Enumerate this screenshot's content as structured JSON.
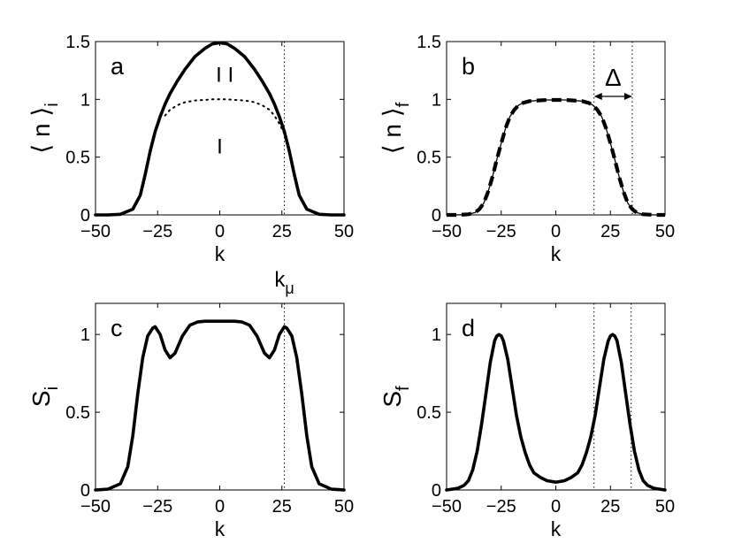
{
  "chart_data": [
    {
      "panel_label": "a",
      "type": "line",
      "xlabel": "k",
      "ylabel": {
        "main": "⟨ n ⟩",
        "sub": "i"
      },
      "xlim": [
        -50,
        50
      ],
      "ylim": [
        0,
        1.5
      ],
      "xticks": [
        -50,
        -25,
        0,
        25,
        50
      ],
      "yticks": [
        0,
        0.5,
        1,
        1.5
      ],
      "ytick_labels": [
        "0",
        "0.5",
        "1",
        "1.5"
      ],
      "grid": false,
      "vlines": [
        26
      ],
      "annotations": [
        {
          "text": "I I",
          "x": 2,
          "y": 1.15
        },
        {
          "text": "I",
          "x": 0,
          "y": 0.53
        },
        {
          "text": "k",
          "sub": "μ",
          "x": 26,
          "y": -0.62
        }
      ],
      "series": [
        {
          "style": "solid-thick",
          "x": [
            -50,
            -45,
            -40,
            -35,
            -32,
            -30,
            -28,
            -26,
            -24,
            -22,
            -20,
            -17,
            -14,
            -10,
            -6,
            -3,
            0,
            3,
            6,
            10,
            14,
            17,
            20,
            22,
            24,
            26,
            28,
            30,
            32,
            35,
            40,
            45,
            50
          ],
          "y": [
            0,
            0,
            0.005,
            0.05,
            0.17,
            0.35,
            0.55,
            0.72,
            0.85,
            0.96,
            1.05,
            1.16,
            1.26,
            1.37,
            1.44,
            1.48,
            1.49,
            1.48,
            1.44,
            1.37,
            1.26,
            1.16,
            1.05,
            0.96,
            0.85,
            0.72,
            0.55,
            0.35,
            0.17,
            0.05,
            0.005,
            0,
            0
          ]
        },
        {
          "style": "dotted",
          "x": [
            -22,
            -20,
            -17,
            -14,
            -10,
            -6,
            -3,
            0,
            3,
            6,
            10,
            14,
            17,
            20,
            22,
            24,
            26
          ],
          "y": [
            0.86,
            0.91,
            0.95,
            0.975,
            0.99,
            0.995,
            1.0,
            1.0,
            1.0,
            0.995,
            0.99,
            0.975,
            0.95,
            0.91,
            0.86,
            0.79,
            0.7
          ]
        }
      ]
    },
    {
      "panel_label": "b",
      "type": "line",
      "xlabel": "k",
      "ylabel": {
        "main": "⟨ n ⟩",
        "sub": "f"
      },
      "xlim": [
        -50,
        50
      ],
      "ylim": [
        0,
        1.5
      ],
      "xticks": [
        -50,
        -25,
        0,
        25,
        50
      ],
      "yticks": [
        0,
        0.5,
        1,
        1.5
      ],
      "ytick_labels": [
        "0",
        "0.5",
        "1",
        "1.5"
      ],
      "grid": false,
      "vlines": [
        17.5,
        35
      ],
      "annotations": [
        {
          "text": "Δ",
          "x": 26,
          "y": 1.23
        }
      ],
      "series": [
        {
          "style": "solid-thin",
          "x": [
            -50,
            -45,
            -40,
            -37,
            -35,
            -33,
            -31,
            -29,
            -27,
            -25,
            -23,
            -21,
            -19,
            -17,
            -15,
            -12,
            -8,
            -4,
            0,
            4,
            8,
            12,
            15,
            17,
            19,
            21,
            23,
            25,
            27,
            29,
            31,
            33,
            35,
            37,
            40,
            45,
            50
          ],
          "y": [
            0,
            0,
            0.005,
            0.02,
            0.05,
            0.1,
            0.2,
            0.33,
            0.48,
            0.62,
            0.75,
            0.85,
            0.91,
            0.95,
            0.97,
            0.985,
            0.99,
            0.995,
            0.995,
            0.995,
            0.99,
            0.985,
            0.97,
            0.95,
            0.91,
            0.85,
            0.75,
            0.62,
            0.48,
            0.33,
            0.2,
            0.1,
            0.05,
            0.02,
            0.005,
            0,
            0
          ]
        },
        {
          "style": "dashed-thick",
          "x": [
            -50,
            -45,
            -40,
            -37,
            -35,
            -33,
            -31,
            -29,
            -27,
            -25,
            -23,
            -21,
            -19,
            -17,
            -15,
            -12,
            -8,
            -4,
            0,
            4,
            8,
            12,
            15,
            17,
            19,
            21,
            23,
            25,
            27,
            29,
            31,
            33,
            35,
            37,
            40,
            45,
            50
          ],
          "y": [
            0,
            0,
            0.005,
            0.02,
            0.05,
            0.1,
            0.2,
            0.33,
            0.48,
            0.62,
            0.75,
            0.85,
            0.91,
            0.95,
            0.97,
            0.985,
            0.99,
            0.995,
            0.995,
            0.995,
            0.99,
            0.985,
            0.97,
            0.95,
            0.91,
            0.85,
            0.75,
            0.62,
            0.48,
            0.33,
            0.2,
            0.1,
            0.05,
            0.02,
            0.005,
            0,
            0
          ]
        }
      ]
    },
    {
      "panel_label": "c",
      "type": "line",
      "xlabel": "k",
      "ylabel": {
        "main": "S",
        "sub": "i"
      },
      "xlim": [
        -50,
        50
      ],
      "ylim": [
        0,
        1.2
      ],
      "xticks": [
        -50,
        -25,
        0,
        25,
        50
      ],
      "yticks": [
        0,
        0.5,
        1
      ],
      "ytick_labels": [
        "0",
        "0.5",
        "1"
      ],
      "grid": false,
      "vlines": [
        26
      ],
      "annotations": [],
      "series": [
        {
          "style": "solid-thick",
          "x": [
            -50,
            -45,
            -40,
            -37,
            -35,
            -33,
            -31,
            -29,
            -27,
            -26,
            -24,
            -22,
            -20,
            -18,
            -15,
            -12,
            -9,
            -6,
            -3,
            0,
            3,
            6,
            9,
            12,
            15,
            18,
            20,
            22,
            24,
            26,
            27,
            29,
            31,
            33,
            35,
            37,
            40,
            45,
            50
          ],
          "y": [
            0,
            0.005,
            0.04,
            0.15,
            0.35,
            0.62,
            0.85,
            0.99,
            1.04,
            1.05,
            1.0,
            0.9,
            0.85,
            0.88,
            0.99,
            1.06,
            1.08,
            1.085,
            1.085,
            1.085,
            1.085,
            1.085,
            1.08,
            1.06,
            0.99,
            0.88,
            0.85,
            0.9,
            1.0,
            1.05,
            1.04,
            0.99,
            0.85,
            0.62,
            0.35,
            0.15,
            0.04,
            0.005,
            0
          ]
        }
      ]
    },
    {
      "panel_label": "d",
      "type": "line",
      "xlabel": "k",
      "ylabel": {
        "main": "S",
        "sub": "f"
      },
      "xlim": [
        -50,
        50
      ],
      "ylim": [
        0,
        1.2
      ],
      "xticks": [
        -50,
        -25,
        0,
        25,
        50
      ],
      "yticks": [
        0,
        0.5,
        1
      ],
      "ytick_labels": [
        "0",
        "0.5",
        "1"
      ],
      "grid": false,
      "vlines": [
        17.5,
        34.5
      ],
      "annotations": [],
      "series": [
        {
          "style": "solid-thick",
          "x": [
            -50,
            -45,
            -42,
            -40,
            -38,
            -36,
            -34,
            -32,
            -30,
            -28,
            -27,
            -26,
            -25,
            -24,
            -22,
            -20,
            -18,
            -16,
            -14,
            -12,
            -10,
            -7,
            -4,
            0,
            4,
            7,
            10,
            12,
            14,
            16,
            18,
            20,
            22,
            24,
            25,
            26,
            27,
            28,
            30,
            32,
            34,
            36,
            38,
            40,
            42,
            45,
            50
          ],
          "y": [
            0,
            0.01,
            0.03,
            0.06,
            0.13,
            0.25,
            0.42,
            0.62,
            0.82,
            0.96,
            0.99,
            1.0,
            0.99,
            0.96,
            0.84,
            0.66,
            0.48,
            0.34,
            0.24,
            0.16,
            0.11,
            0.08,
            0.06,
            0.05,
            0.06,
            0.08,
            0.11,
            0.16,
            0.24,
            0.34,
            0.48,
            0.66,
            0.84,
            0.96,
            0.99,
            1.0,
            0.99,
            0.96,
            0.82,
            0.62,
            0.42,
            0.25,
            0.13,
            0.06,
            0.03,
            0.01,
            0
          ]
        }
      ]
    }
  ]
}
